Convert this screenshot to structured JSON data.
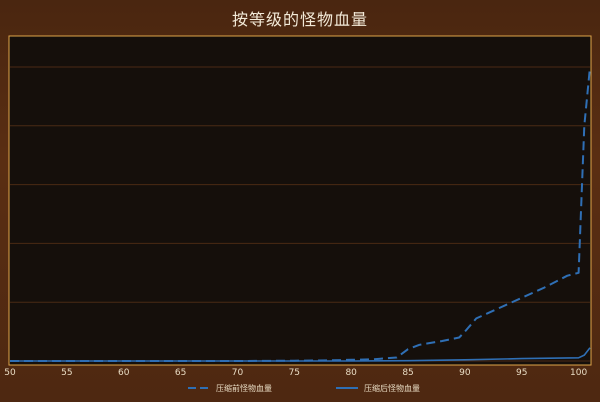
{
  "chart_data": {
    "type": "line",
    "title": "按等级的怪物血量",
    "xlabel": "",
    "ylabel": "",
    "xlim": [
      50,
      101
    ],
    "ylim": [
      0,
      1
    ],
    "xticks": [
      50,
      55,
      60,
      65,
      70,
      75,
      80,
      85,
      90,
      95,
      100
    ],
    "y_tick_labels_shown": false,
    "grid": "horizontal",
    "legend_position": "bottom",
    "series": [
      {
        "name": "压缩前怪物血量",
        "style": "dashed",
        "color": "#2f6fb5",
        "x": [
          50,
          60,
          70,
          75,
          78,
          80,
          82,
          84,
          85,
          86,
          88,
          89.5,
          90,
          91,
          93,
          95,
          97,
          99,
          100,
          100.5,
          101
        ],
        "y": [
          0,
          0,
          0,
          0.001,
          0.002,
          0.004,
          0.006,
          0.012,
          0.04,
          0.055,
          0.068,
          0.08,
          0.1,
          0.145,
          0.18,
          0.215,
          0.25,
          0.29,
          0.3,
          0.8,
          1.0
        ]
      },
      {
        "name": "压缩后怪物血量",
        "style": "solid",
        "color": "#2f6fb5",
        "x": [
          50,
          60,
          70,
          80,
          85,
          90,
          95,
          100,
          100.5,
          101
        ],
        "y": [
          0,
          0,
          0,
          0,
          0.001,
          0.004,
          0.008,
          0.011,
          0.02,
          0.045
        ]
      }
    ]
  }
}
